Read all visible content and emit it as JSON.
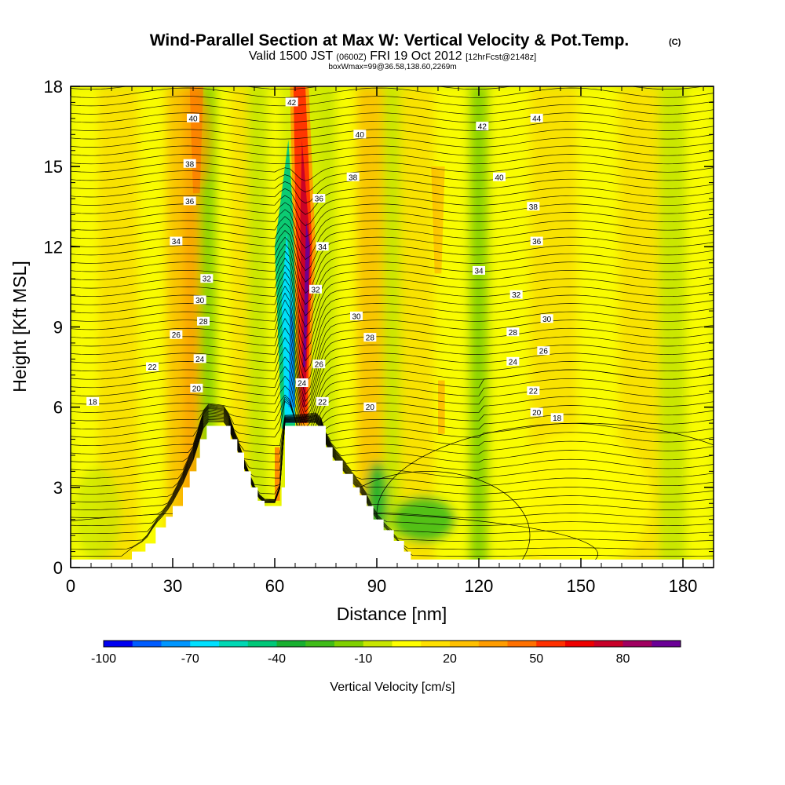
{
  "title": "Wind-Parallel Section at Max W: Vertical Velocity & Pot.Temp.",
  "copyright": "(C)",
  "subtitle": {
    "valid_prefix": "Valid 1500 JST",
    "utc": "(0600Z)",
    "date": "FRI 19 Oct 2012",
    "forecast": "[12hrFcst@2148z]"
  },
  "box_info": "boxWmax=99@36.58,138.60,2269m",
  "chart_data": {
    "type": "heatmap",
    "xlabel": "Distance [nm]",
    "ylabel": "Height [Kft MSL]",
    "xlim": [
      0,
      189
    ],
    "ylim": [
      0,
      18
    ],
    "x_ticks": [
      0,
      30,
      60,
      90,
      120,
      150,
      180
    ],
    "y_ticks": [
      0,
      3,
      6,
      9,
      12,
      15,
      18
    ],
    "colorbar": {
      "label": "Vertical Velocity [cm/s]",
      "tick_labels": [
        "-100",
        "-70",
        "-40",
        "-10",
        "20",
        "50",
        "80"
      ],
      "tick_values": [
        -100,
        -70,
        -40,
        -10,
        20,
        50,
        80
      ],
      "range": [
        -100,
        100
      ],
      "bins": 20,
      "colors": [
        "#0000f0",
        "#005cff",
        "#0096ff",
        "#00e0ff",
        "#00d8b4",
        "#00c878",
        "#18b030",
        "#40bc18",
        "#80d000",
        "#c8e600",
        "#ffff00",
        "#ffe000",
        "#ffc000",
        "#ff9c00",
        "#ff7000",
        "#ff3000",
        "#ee0000",
        "#c80028",
        "#a00060",
        "#6a0096"
      ]
    },
    "terrain_kft": [
      [
        0,
        0.3
      ],
      [
        15,
        0.3
      ],
      [
        18,
        0.6
      ],
      [
        22,
        0.9
      ],
      [
        25,
        1.5
      ],
      [
        28,
        1.9
      ],
      [
        30,
        2.3
      ],
      [
        33,
        3.0
      ],
      [
        35,
        3.6
      ],
      [
        37,
        4.1
      ],
      [
        38,
        4.8
      ],
      [
        40,
        5.3
      ],
      [
        46,
        5.3
      ],
      [
        47,
        4.8
      ],
      [
        49,
        4.3
      ],
      [
        51,
        3.6
      ],
      [
        53,
        3.0
      ],
      [
        55,
        2.5
      ],
      [
        57,
        2.3
      ],
      [
        60,
        2.3
      ],
      [
        62,
        3.0
      ],
      [
        63,
        5.3
      ],
      [
        73,
        5.3
      ],
      [
        75,
        4.5
      ],
      [
        77,
        4.0
      ],
      [
        80,
        3.5
      ],
      [
        83,
        3.0
      ],
      [
        85,
        2.7
      ],
      [
        87,
        2.3
      ],
      [
        89,
        1.8
      ],
      [
        92,
        1.4
      ],
      [
        95,
        1.0
      ],
      [
        98,
        0.6
      ],
      [
        100,
        0.3
      ],
      [
        189,
        0.3
      ]
    ],
    "updraft_core": {
      "from": [
        68,
        5.3
      ],
      "to": [
        68,
        18
      ],
      "peak_cm_s": 99
    },
    "downdraft_core": {
      "from": [
        63,
        5.3
      ],
      "to": [
        63,
        12
      ],
      "min_cm_s": -100
    },
    "theta_labels": [
      {
        "label": "18",
        "x": 6.5,
        "y": 6.2
      },
      {
        "label": "20",
        "x": 37,
        "y": 6.7
      },
      {
        "label": "22",
        "x": 24,
        "y": 7.5
      },
      {
        "label": "24",
        "x": 38,
        "y": 7.8
      },
      {
        "label": "26",
        "x": 31,
        "y": 8.7
      },
      {
        "label": "28",
        "x": 39,
        "y": 9.2
      },
      {
        "label": "30",
        "x": 38,
        "y": 10.0
      },
      {
        "label": "32",
        "x": 40,
        "y": 10.8
      },
      {
        "label": "34",
        "x": 31,
        "y": 12.2
      },
      {
        "label": "36",
        "x": 35,
        "y": 13.7
      },
      {
        "label": "38",
        "x": 35,
        "y": 15.1
      },
      {
        "label": "40",
        "x": 36,
        "y": 16.8
      },
      {
        "label": "42",
        "x": 65,
        "y": 17.4
      },
      {
        "label": "36",
        "x": 73,
        "y": 13.8
      },
      {
        "label": "34",
        "x": 74,
        "y": 12.0
      },
      {
        "label": "32",
        "x": 72,
        "y": 10.4
      },
      {
        "label": "30",
        "x": 84,
        "y": 9.4
      },
      {
        "label": "28",
        "x": 88,
        "y": 8.6
      },
      {
        "label": "26",
        "x": 73,
        "y": 7.6
      },
      {
        "label": "24",
        "x": 68,
        "y": 6.9
      },
      {
        "label": "22",
        "x": 74,
        "y": 6.2
      },
      {
        "label": "20",
        "x": 88,
        "y": 6.0
      },
      {
        "label": "40",
        "x": 85,
        "y": 16.2
      },
      {
        "label": "38",
        "x": 83,
        "y": 14.6
      },
      {
        "label": "42",
        "x": 121,
        "y": 16.5
      },
      {
        "label": "44",
        "x": 137,
        "y": 16.8
      },
      {
        "label": "40",
        "x": 126,
        "y": 14.6
      },
      {
        "label": "38",
        "x": 136,
        "y": 13.5
      },
      {
        "label": "36",
        "x": 137,
        "y": 12.2
      },
      {
        "label": "34",
        "x": 120,
        "y": 11.1
      },
      {
        "label": "32",
        "x": 131,
        "y": 10.2
      },
      {
        "label": "30",
        "x": 140,
        "y": 9.3
      },
      {
        "label": "28",
        "x": 130,
        "y": 8.8
      },
      {
        "label": "26",
        "x": 139,
        "y": 8.1
      },
      {
        "label": "24",
        "x": 130,
        "y": 7.7
      },
      {
        "label": "22",
        "x": 136,
        "y": 6.6
      },
      {
        "label": "20",
        "x": 137,
        "y": 5.8
      },
      {
        "label": "18",
        "x": 143,
        "y": 5.6
      }
    ]
  }
}
